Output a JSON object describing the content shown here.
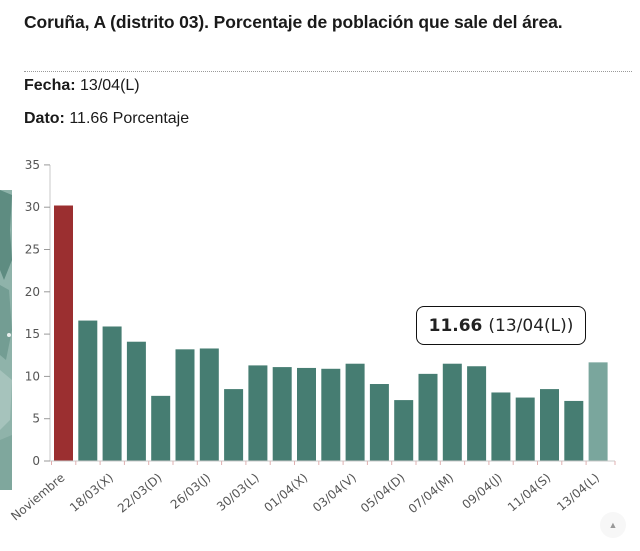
{
  "header": {
    "title": "Coruña, A (distrito 03). Porcentaje de población que sale del área.",
    "fecha_label": "Fecha:",
    "fecha_value": "13/04(L)",
    "dato_label": "Dato:",
    "dato_value": "11.66 Porcentaje"
  },
  "tooltip": {
    "value": "11.66",
    "date": "(13/04(L))"
  },
  "colors": {
    "baseline_bar": "#9b2f30",
    "bar": "#467d72",
    "highlight_bar": "#7aa69d",
    "axis": "#c8c8c8"
  },
  "icons": {
    "scroll_top": "▲"
  },
  "chart_data": {
    "type": "bar",
    "title": "Coruña, A (distrito 03). Porcentaje de población que sale del área.",
    "xlabel": "",
    "ylabel": "Porcentaje",
    "ylim": [
      0,
      35
    ],
    "yticks": [
      0,
      5,
      10,
      15,
      20,
      25,
      30,
      35
    ],
    "grid": false,
    "legend": null,
    "x_tick_labels": [
      "Noviembre",
      "18/03(X)",
      "22/03(D)",
      "26/03(J)",
      "30/03(L)",
      "01/04(X)",
      "03/04(V)",
      "05/04(D)",
      "07/04(M)",
      "09/04(J)",
      "11/04(S)",
      "13/04(L)"
    ],
    "categories": [
      "Noviembre",
      "",
      "18/03(X)",
      "",
      "22/03(D)",
      "",
      "26/03(J)",
      "",
      "30/03(L)",
      "",
      "01/04(X)",
      "",
      "03/04(V)",
      "",
      "05/04(D)",
      "",
      "07/04(M)",
      "",
      "09/04(J)",
      "",
      "11/04(S)",
      "",
      "13/04(L)"
    ],
    "values": [
      30.2,
      16.6,
      15.9,
      14.1,
      7.7,
      13.2,
      13.3,
      8.5,
      11.3,
      11.1,
      11.0,
      10.9,
      11.5,
      9.1,
      7.2,
      10.3,
      11.5,
      11.2,
      8.1,
      7.5,
      8.5,
      7.1,
      11.66
    ],
    "highlight_index": 22,
    "baseline_index": 0,
    "annotation": "11.66 (13/04(L))"
  }
}
